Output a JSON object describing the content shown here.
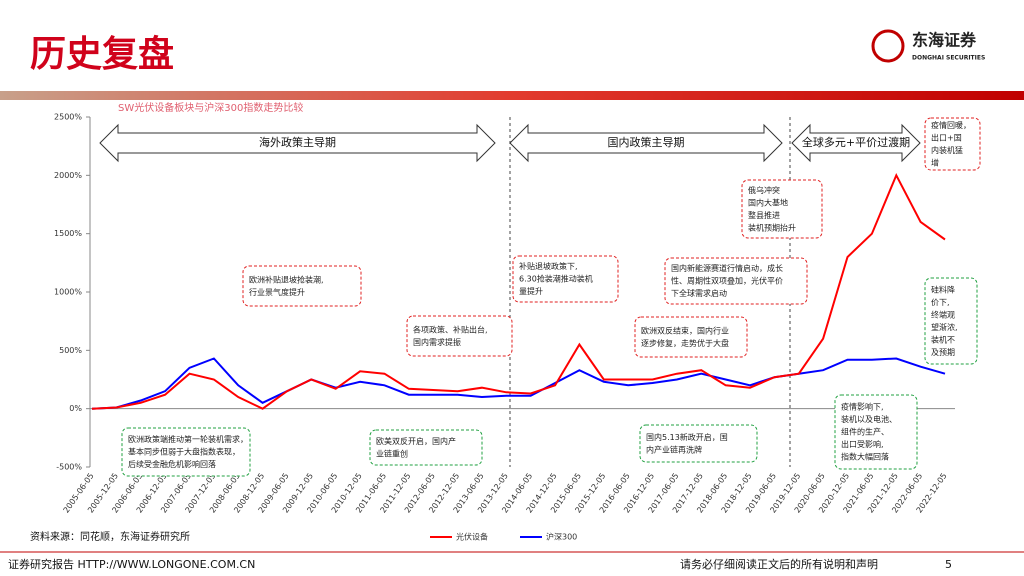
{
  "header": {
    "title": "历史复盘",
    "logo_cn": "东海证券",
    "logo_en": "DONGHAI SECURITIES"
  },
  "chart_data": {
    "type": "line",
    "title": "SW光伏设备板块与沪深300指数走势比较",
    "x": [
      "2005-06-05",
      "2005-12-05",
      "2006-06-05",
      "2006-12-05",
      "2007-06-05",
      "2007-12-05",
      "2008-06-05",
      "2008-12-05",
      "2009-06-05",
      "2009-12-05",
      "2010-06-05",
      "2010-12-05",
      "2011-06-05",
      "2011-12-05",
      "2012-06-05",
      "2012-12-05",
      "2013-06-05",
      "2013-12-05",
      "2014-06-05",
      "2014-12-05",
      "2015-06-05",
      "2015-12-05",
      "2016-06-05",
      "2016-12-05",
      "2017-06-05",
      "2017-12-05",
      "2018-06-05",
      "2018-12-05",
      "2019-06-05",
      "2019-12-05",
      "2020-06-05",
      "2020-12-05",
      "2021-06-05",
      "2021-12-05",
      "2022-06-05",
      "2022-12-05"
    ],
    "series": [
      {
        "name": "光伏设备",
        "color": "#ff0000",
        "values": [
          0,
          10,
          50,
          120,
          300,
          250,
          100,
          0,
          150,
          250,
          170,
          320,
          300,
          170,
          160,
          150,
          180,
          140,
          130,
          200,
          550,
          250,
          250,
          250,
          300,
          330,
          200,
          180,
          270,
          300,
          600,
          1300,
          1500,
          2000,
          1600,
          1450
        ]
      },
      {
        "name": "沪深300",
        "color": "#0000ff",
        "values": [
          0,
          10,
          70,
          150,
          350,
          430,
          200,
          50,
          150,
          250,
          180,
          230,
          200,
          120,
          120,
          120,
          100,
          110,
          110,
          220,
          330,
          230,
          200,
          220,
          250,
          300,
          250,
          200,
          270,
          300,
          330,
          420,
          420,
          430,
          360,
          300
        ]
      }
    ],
    "ylim": [
      -500,
      2500
    ],
    "yticks": [
      {
        "value": -500,
        "label": "-500%"
      },
      {
        "value": 0,
        "label": "0%"
      },
      {
        "value": 500,
        "label": "500%"
      },
      {
        "value": 1000,
        "label": "1000%"
      },
      {
        "value": 1500,
        "label": "1500%"
      },
      {
        "value": 2000,
        "label": "2000%"
      },
      {
        "value": 2500,
        "label": "2500%"
      }
    ],
    "legend": "bottom",
    "periods": [
      "海外政策主导期",
      "国内政策主导期",
      "全球多元+平价过渡期"
    ],
    "callouts": [
      {
        "lines": [
          "欧洲补贴退坡抢装潮,",
          "行业景气度提升"
        ]
      },
      {
        "lines": [
          "各项政策、补贴出台,",
          "国内需求提振"
        ]
      },
      {
        "lines": [
          "补贴退坡政策下,",
          "6.30抢装潮推动装机",
          "量提升"
        ]
      },
      {
        "lines": [
          "欧洲双反结束，国内行业",
          "逐步修复，走势优于大盘"
        ]
      },
      {
        "lines": [
          "国内新能源赛道行情启动，成长",
          "性、周期性双项叠加，光伏平价",
          "下全球需求启动"
        ]
      },
      {
        "lines": [
          "俄乌冲突",
          "国内大基地",
          "整县推进",
          "装机预期抬升"
        ]
      },
      {
        "lines": [
          "疫情回暖，",
          "出口+国",
          "内装机猛",
          "增"
        ]
      },
      {
        "lines": [
          "欧洲政策端推动第一轮装机需求，",
          "基本同步但弱于大盘指数表现，",
          "后续受金融危机影响回落"
        ]
      },
      {
        "lines": [
          "欧美双反开启，国内产",
          "业链重创"
        ]
      },
      {
        "lines": [
          "国内5.13新政开启，国",
          "内产业链再洗牌"
        ]
      },
      {
        "lines": [
          "硅料降",
          "价下,",
          "终端观",
          "望渐浓,",
          "装机不",
          "及预期"
        ]
      },
      {
        "lines": [
          "疫情影响下,",
          "装机以及电池、",
          "组件的生产、",
          "出口受影响,",
          "指数大幅回落"
        ]
      }
    ]
  },
  "source": "资料来源：同花顺，东海证券研究所",
  "footer": {
    "left": "证券研究报告 HTTP://WWW.LONGONE.COM.CN",
    "right": "请务必仔细阅读正文后的所有说明和声明",
    "page": "5"
  }
}
